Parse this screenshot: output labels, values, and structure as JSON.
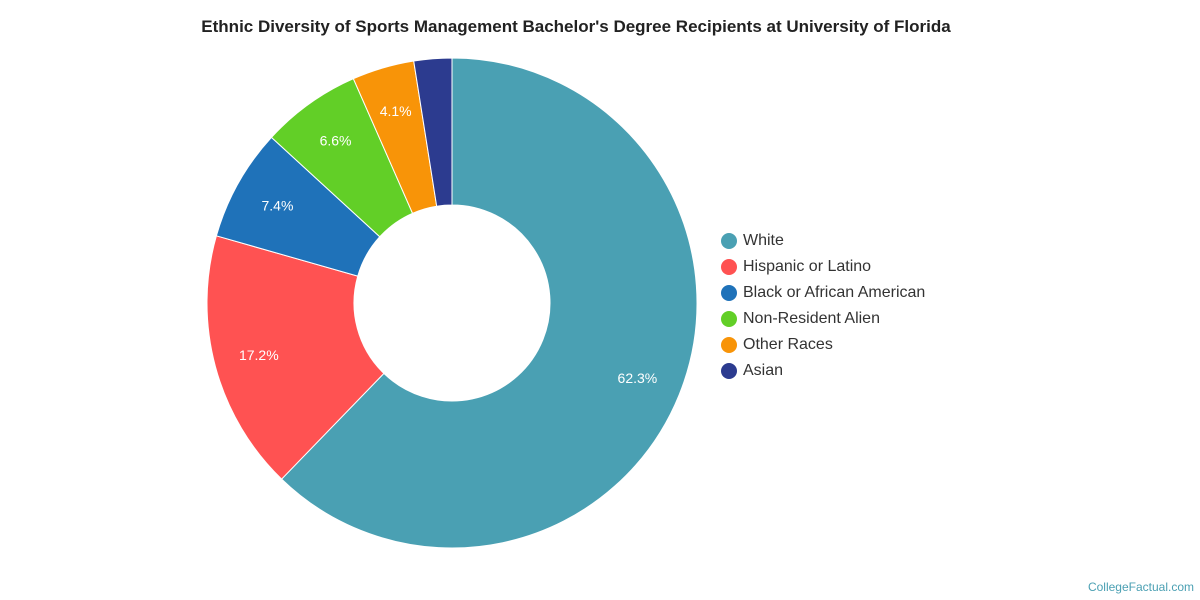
{
  "chart_data": {
    "type": "pie",
    "variant": "donut",
    "title": "Ethnic Diversity of Sports Management Bachelor's Degree Recipients at University of Florida",
    "slices": [
      {
        "name": "White",
        "value": 62.3,
        "label": "62.3%",
        "color": "#4aa0b3"
      },
      {
        "name": "Hispanic or Latino",
        "value": 17.2,
        "label": "17.2%",
        "color": "#ff5252"
      },
      {
        "name": "Black or African American",
        "value": 7.4,
        "label": "7.4%",
        "color": "#1f72b9"
      },
      {
        "name": "Non-Resident Alien",
        "value": 6.6,
        "label": "6.6%",
        "color": "#62cf27"
      },
      {
        "name": "Other Races",
        "value": 4.1,
        "label": "4.1%",
        "color": "#f89408"
      },
      {
        "name": "Asian",
        "value": 2.5,
        "label": "",
        "color": "#2c3b8f"
      }
    ],
    "legend_position": "right"
  },
  "credit": "CollegeFactual.com"
}
